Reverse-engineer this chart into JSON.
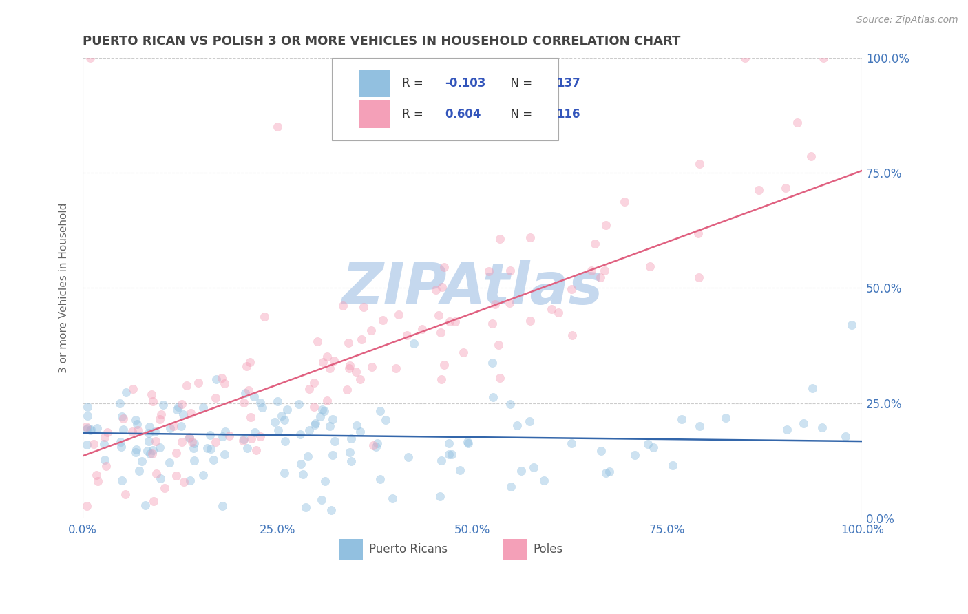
{
  "title": "PUERTO RICAN VS POLISH 3 OR MORE VEHICLES IN HOUSEHOLD CORRELATION CHART",
  "source_text": "Source: ZipAtlas.com",
  "ylabel": "3 or more Vehicles in Household",
  "xlim": [
    0,
    1
  ],
  "ylim": [
    0,
    1
  ],
  "ytick_labels": [
    "0.0%",
    "25.0%",
    "50.0%",
    "75.0%",
    "100.0%"
  ],
  "ytick_values": [
    0,
    0.25,
    0.5,
    0.75,
    1.0
  ],
  "xtick_labels": [
    "0.0%",
    "25.0%",
    "50.0%",
    "75.0%",
    "100.0%"
  ],
  "xtick_values": [
    0,
    0.25,
    0.5,
    0.75,
    1.0
  ],
  "blue_color": "#92c0e0",
  "pink_color": "#f4a0b8",
  "blue_line_color": "#3366aa",
  "pink_line_color": "#e06080",
  "title_color": "#444444",
  "axis_label_color": "#666666",
  "tick_color": "#4477bb",
  "source_color": "#999999",
  "blue_r": -0.103,
  "blue_n": 137,
  "pink_r": 0.604,
  "pink_n": 116,
  "blue_intercept": 0.185,
  "blue_slope": -0.018,
  "pink_intercept": 0.135,
  "pink_slope": 0.62,
  "background_color": "#ffffff",
  "grid_color": "#cccccc",
  "watermark_color": "#c5d8ee",
  "marker_size": 80,
  "marker_alpha": 0.45,
  "r_n_color": "#3355bb",
  "legend_label_color": "#333333"
}
